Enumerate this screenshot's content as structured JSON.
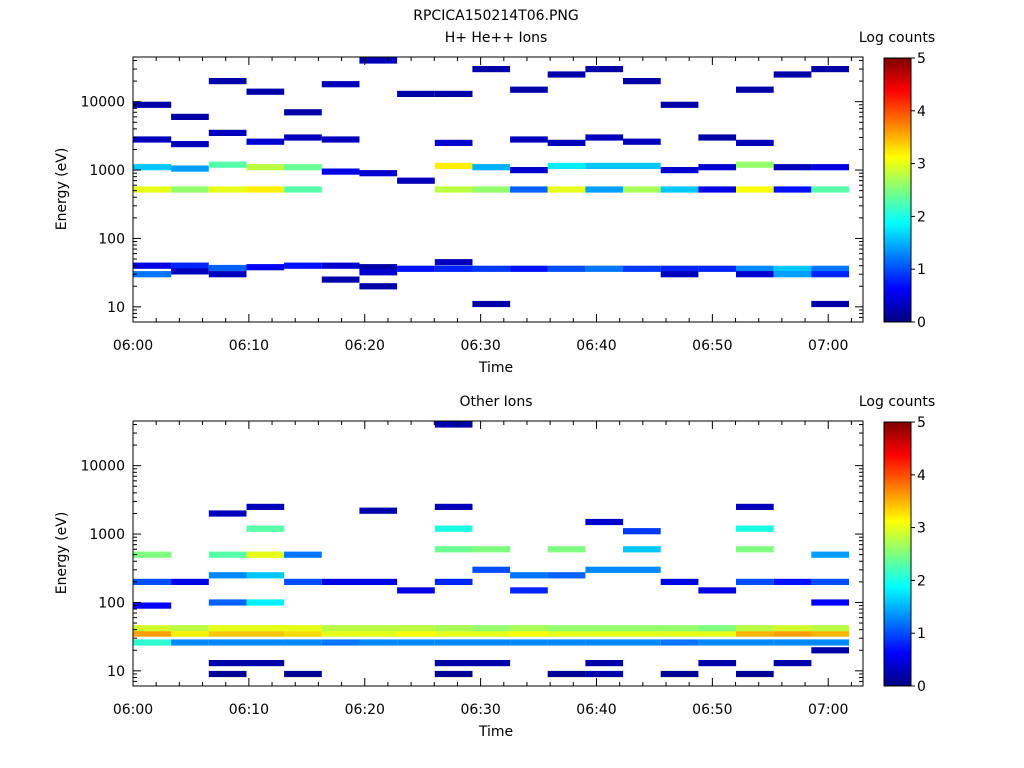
{
  "figure": {
    "title": "RPCICA150214T06.PNG"
  },
  "colormap_stops": [
    "#00007f",
    "#0000ff",
    "#007fff",
    "#00ffff",
    "#7fff7f",
    "#ffff00",
    "#ff7f00",
    "#ff0000",
    "#7f0000"
  ],
  "chart_data": [
    {
      "type": "heatmap",
      "title": "H+ He++ Ions",
      "xlabel": "Time",
      "ylabel": "Energy (eV)",
      "x_range": [
        "06:00",
        "07:03"
      ],
      "x_ticks": [
        "06:00",
        "06:10",
        "06:20",
        "06:30",
        "06:40",
        "06:50",
        "07:00"
      ],
      "y_scale": "log",
      "y_range": [
        6,
        45000
      ],
      "y_ticks": [
        "10",
        "100",
        "1000",
        "10000"
      ],
      "colorbar": {
        "label": "Log counts",
        "range": [
          0,
          5
        ],
        "ticks": [
          "0",
          "1",
          "2",
          "3",
          "4",
          "5"
        ]
      },
      "time_bins": [
        "06:01:40",
        "06:04:55",
        "06:08:10",
        "06:11:25",
        "06:14:40",
        "06:17:55",
        "06:21:10",
        "06:24:25",
        "06:27:40",
        "06:30:55",
        "06:34:10",
        "06:37:25",
        "06:40:40",
        "06:43:55",
        "06:47:10",
        "06:50:25",
        "06:53:40",
        "06:56:55",
        "07:00:10"
      ],
      "cells": [
        [
          "06:01:40",
          520,
          3.0
        ],
        [
          "06:01:40",
          1100,
          1.6
        ],
        [
          "06:01:40",
          2800,
          0.3
        ],
        [
          "06:01:40",
          9000,
          0.2
        ],
        [
          "06:01:40",
          40,
          0.5
        ],
        [
          "06:01:40",
          30,
          1.2
        ],
        [
          "06:04:55",
          520,
          2.6
        ],
        [
          "06:04:55",
          1050,
          1.4
        ],
        [
          "06:04:55",
          2400,
          0.3
        ],
        [
          "06:04:55",
          40,
          0.8
        ],
        [
          "06:04:55",
          33,
          0.3
        ],
        [
          "06:04:55",
          6000,
          0.2
        ],
        [
          "06:08:10",
          520,
          3.0
        ],
        [
          "06:08:10",
          1200,
          2.3
        ],
        [
          "06:08:10",
          3500,
          0.3
        ],
        [
          "06:08:10",
          37,
          1.1
        ],
        [
          "06:08:10",
          30,
          0.3
        ],
        [
          "06:08:10",
          20000,
          0.2
        ],
        [
          "06:11:25",
          520,
          3.2
        ],
        [
          "06:11:25",
          1100,
          2.8
        ],
        [
          "06:11:25",
          2600,
          0.4
        ],
        [
          "06:11:25",
          38,
          0.6
        ],
        [
          "06:11:25",
          14000,
          0.2
        ],
        [
          "06:14:40",
          520,
          2.3
        ],
        [
          "06:14:40",
          1100,
          2.4
        ],
        [
          "06:14:40",
          3000,
          0.3
        ],
        [
          "06:14:40",
          40,
          0.7
        ],
        [
          "06:14:40",
          7000,
          0.2
        ],
        [
          "06:17:55",
          950,
          0.5
        ],
        [
          "06:17:55",
          2800,
          0.3
        ],
        [
          "06:17:55",
          40,
          0.4
        ],
        [
          "06:17:55",
          25,
          0.2
        ],
        [
          "06:17:55",
          18000,
          0.3
        ],
        [
          "06:21:10",
          900,
          0.4
        ],
        [
          "06:21:10",
          38,
          0.2
        ],
        [
          "06:21:10",
          32,
          0.4
        ],
        [
          "06:21:10",
          20,
          0.2
        ],
        [
          "06:21:10",
          40000,
          0.3
        ],
        [
          "06:24:25",
          700,
          0.3
        ],
        [
          "06:24:25",
          36,
          0.7
        ],
        [
          "06:24:25",
          13000,
          0.2
        ],
        [
          "06:27:40",
          520,
          2.8
        ],
        [
          "06:27:40",
          1150,
          3.2
        ],
        [
          "06:27:40",
          2500,
          0.4
        ],
        [
          "06:27:40",
          36,
          0.8
        ],
        [
          "06:27:40",
          45,
          0.3
        ],
        [
          "06:27:40",
          13000,
          0.2
        ],
        [
          "06:30:55",
          520,
          2.6
        ],
        [
          "06:30:55",
          1100,
          1.5
        ],
        [
          "06:30:55",
          36,
          0.9
        ],
        [
          "06:30:55",
          11,
          0.2
        ],
        [
          "06:30:55",
          30000,
          0.2
        ],
        [
          "06:34:10",
          520,
          1.1
        ],
        [
          "06:34:10",
          1000,
          0.4
        ],
        [
          "06:34:10",
          2800,
          0.3
        ],
        [
          "06:34:10",
          36,
          0.7
        ],
        [
          "06:34:10",
          15000,
          0.2
        ],
        [
          "06:37:25",
          520,
          3.0
        ],
        [
          "06:37:25",
          1150,
          1.8
        ],
        [
          "06:37:25",
          2500,
          0.3
        ],
        [
          "06:37:25",
          36,
          1.0
        ],
        [
          "06:37:25",
          25000,
          0.2
        ],
        [
          "06:40:40",
          520,
          1.4
        ],
        [
          "06:40:40",
          1150,
          1.6
        ],
        [
          "06:40:40",
          3000,
          0.3
        ],
        [
          "06:40:40",
          36,
          1.2
        ],
        [
          "06:40:40",
          30000,
          0.2
        ],
        [
          "06:43:55",
          520,
          2.7
        ],
        [
          "06:43:55",
          1150,
          1.6
        ],
        [
          "06:43:55",
          2600,
          0.3
        ],
        [
          "06:43:55",
          36,
          0.9
        ],
        [
          "06:43:55",
          20000,
          0.2
        ],
        [
          "06:47:10",
          520,
          1.6
        ],
        [
          "06:47:10",
          1000,
          0.4
        ],
        [
          "06:47:10",
          36,
          0.8
        ],
        [
          "06:47:10",
          30,
          0.3
        ],
        [
          "06:47:10",
          9000,
          0.2
        ],
        [
          "06:50:25",
          520,
          0.5
        ],
        [
          "06:50:25",
          1100,
          0.4
        ],
        [
          "06:50:25",
          36,
          0.8
        ],
        [
          "06:50:25",
          3000,
          0.2
        ],
        [
          "06:53:40",
          520,
          3.1
        ],
        [
          "06:53:40",
          1200,
          2.6
        ],
        [
          "06:53:40",
          2500,
          0.3
        ],
        [
          "06:53:40",
          36,
          1.3
        ],
        [
          "06:53:40",
          30,
          0.4
        ],
        [
          "06:53:40",
          15000,
          0.2
        ],
        [
          "06:56:55",
          520,
          0.7
        ],
        [
          "06:56:55",
          1100,
          0.3
        ],
        [
          "06:56:55",
          36,
          1.6
        ],
        [
          "06:56:55",
          30,
          1.4
        ],
        [
          "06:56:55",
          25000,
          0.2
        ],
        [
          "07:00:10",
          520,
          2.3
        ],
        [
          "07:00:10",
          1100,
          0.5
        ],
        [
          "07:00:10",
          36,
          1.2
        ],
        [
          "07:00:10",
          30,
          0.8
        ],
        [
          "07:00:10",
          11,
          0.2
        ],
        [
          "07:00:10",
          30000,
          0.2
        ]
      ]
    },
    {
      "type": "heatmap",
      "title": "Other Ions",
      "xlabel": "Time",
      "ylabel": "Energy (eV)",
      "x_range": [
        "06:00",
        "07:03"
      ],
      "x_ticks": [
        "06:00",
        "06:10",
        "06:20",
        "06:30",
        "06:40",
        "06:50",
        "07:00"
      ],
      "y_scale": "log",
      "y_range": [
        6,
        45000
      ],
      "y_ticks": [
        "10",
        "100",
        "1000",
        "10000"
      ],
      "colorbar": {
        "label": "Log counts",
        "range": [
          0,
          5
        ],
        "ticks": [
          "0",
          "1",
          "2",
          "3",
          "4",
          "5"
        ]
      },
      "time_bins": [
        "06:01:40",
        "06:04:55",
        "06:08:10",
        "06:11:25",
        "06:14:40",
        "06:17:55",
        "06:21:10",
        "06:24:25",
        "06:27:40",
        "06:30:55",
        "06:34:10",
        "06:37:25",
        "06:40:40",
        "06:43:55",
        "06:47:10",
        "06:50:25",
        "06:53:40",
        "06:56:55",
        "07:00:10"
      ],
      "cells": [
        [
          "06:01:40",
          35,
          3.6
        ],
        [
          "06:01:40",
          42,
          2.9
        ],
        [
          "06:01:40",
          26,
          2.1
        ],
        [
          "06:01:40",
          500,
          2.5
        ],
        [
          "06:01:40",
          200,
          1.0
        ],
        [
          "06:01:40",
          90,
          0.6
        ],
        [
          "06:04:55",
          35,
          3.2
        ],
        [
          "06:04:55",
          42,
          2.8
        ],
        [
          "06:04:55",
          26,
          1.3
        ],
        [
          "06:04:55",
          200,
          0.5
        ],
        [
          "06:08:10",
          35,
          3.4
        ],
        [
          "06:08:10",
          42,
          3.0
        ],
        [
          "06:08:10",
          26,
          1.3
        ],
        [
          "06:08:10",
          500,
          2.3
        ],
        [
          "06:08:10",
          250,
          1.3
        ],
        [
          "06:08:10",
          100,
          1.1
        ],
        [
          "06:08:10",
          2000,
          0.3
        ],
        [
          "06:08:10",
          13,
          0.2
        ],
        [
          "06:08:10",
          9,
          0.1
        ],
        [
          "06:11:25",
          35,
          3.4
        ],
        [
          "06:11:25",
          42,
          3.0
        ],
        [
          "06:11:25",
          26,
          1.3
        ],
        [
          "06:11:25",
          500,
          3.0
        ],
        [
          "06:11:25",
          250,
          1.6
        ],
        [
          "06:11:25",
          100,
          1.8
        ],
        [
          "06:11:25",
          1200,
          2.3
        ],
        [
          "06:11:25",
          2500,
          0.3
        ],
        [
          "06:11:25",
          13,
          0.2
        ],
        [
          "06:14:40",
          35,
          3.3
        ],
        [
          "06:14:40",
          42,
          3.0
        ],
        [
          "06:14:40",
          26,
          1.3
        ],
        [
          "06:14:40",
          500,
          1.2
        ],
        [
          "06:14:40",
          200,
          1.0
        ],
        [
          "06:14:40",
          9,
          0.1
        ],
        [
          "06:17:55",
          35,
          3.0
        ],
        [
          "06:17:55",
          42,
          2.8
        ],
        [
          "06:17:55",
          26,
          1.2
        ],
        [
          "06:17:55",
          200,
          0.5
        ],
        [
          "06:21:10",
          35,
          3.0
        ],
        [
          "06:21:10",
          42,
          2.8
        ],
        [
          "06:21:10",
          26,
          1.3
        ],
        [
          "06:21:10",
          200,
          0.5
        ],
        [
          "06:21:10",
          2200,
          0.2
        ],
        [
          "06:24:25",
          35,
          3.1
        ],
        [
          "06:24:25",
          42,
          2.8
        ],
        [
          "06:24:25",
          26,
          1.3
        ],
        [
          "06:24:25",
          150,
          0.5
        ],
        [
          "06:27:40",
          35,
          3.0
        ],
        [
          "06:27:40",
          42,
          2.7
        ],
        [
          "06:27:40",
          26,
          1.3
        ],
        [
          "06:27:40",
          600,
          2.4
        ],
        [
          "06:27:40",
          1200,
          2.0
        ],
        [
          "06:27:40",
          200,
          0.8
        ],
        [
          "06:27:40",
          2500,
          0.3
        ],
        [
          "06:27:40",
          40000,
          0.2
        ],
        [
          "06:27:40",
          13,
          0.2
        ],
        [
          "06:27:40",
          9,
          0.1
        ],
        [
          "06:30:55",
          35,
          3.0
        ],
        [
          "06:30:55",
          42,
          2.6
        ],
        [
          "06:30:55",
          26,
          1.3
        ],
        [
          "06:30:55",
          600,
          2.5
        ],
        [
          "06:30:55",
          300,
          1.0
        ],
        [
          "06:30:55",
          13,
          0.2
        ],
        [
          "06:34:10",
          35,
          3.1
        ],
        [
          "06:34:10",
          42,
          2.7
        ],
        [
          "06:34:10",
          26,
          1.3
        ],
        [
          "06:34:10",
          250,
          1.2
        ],
        [
          "06:34:10",
          150,
          0.8
        ],
        [
          "06:37:25",
          35,
          3.0
        ],
        [
          "06:37:25",
          42,
          2.6
        ],
        [
          "06:37:25",
          26,
          1.3
        ],
        [
          "06:37:25",
          600,
          2.5
        ],
        [
          "06:37:25",
          250,
          1.1
        ],
        [
          "06:37:25",
          9,
          0.1
        ],
        [
          "06:40:40",
          35,
          3.0
        ],
        [
          "06:40:40",
          42,
          2.6
        ],
        [
          "06:40:40",
          26,
          1.3
        ],
        [
          "06:40:40",
          300,
          1.3
        ],
        [
          "06:40:40",
          1500,
          0.4
        ],
        [
          "06:40:40",
          13,
          0.2
        ],
        [
          "06:40:40",
          9,
          0.2
        ],
        [
          "06:43:55",
          35,
          3.0
        ],
        [
          "06:43:55",
          42,
          2.6
        ],
        [
          "06:43:55",
          26,
          1.3
        ],
        [
          "06:43:55",
          600,
          1.6
        ],
        [
          "06:43:55",
          300,
          1.3
        ],
        [
          "06:43:55",
          1100,
          0.9
        ],
        [
          "06:47:10",
          35,
          3.0
        ],
        [
          "06:47:10",
          42,
          2.6
        ],
        [
          "06:47:10",
          26,
          1.2
        ],
        [
          "06:47:10",
          200,
          0.5
        ],
        [
          "06:47:10",
          9,
          0.1
        ],
        [
          "06:50:25",
          35,
          3.0
        ],
        [
          "06:50:25",
          42,
          2.5
        ],
        [
          "06:50:25",
          26,
          1.3
        ],
        [
          "06:50:25",
          150,
          0.5
        ],
        [
          "06:50:25",
          13,
          0.2
        ],
        [
          "06:53:40",
          35,
          3.5
        ],
        [
          "06:53:40",
          42,
          2.8
        ],
        [
          "06:53:40",
          26,
          1.3
        ],
        [
          "06:53:40",
          600,
          2.5
        ],
        [
          "06:53:40",
          1200,
          2.0
        ],
        [
          "06:53:40",
          200,
          1.0
        ],
        [
          "06:53:40",
          2500,
          0.3
        ],
        [
          "06:53:40",
          9,
          0.1
        ],
        [
          "06:56:55",
          35,
          3.6
        ],
        [
          "06:56:55",
          42,
          2.9
        ],
        [
          "06:56:55",
          26,
          1.3
        ],
        [
          "06:56:55",
          200,
          0.7
        ],
        [
          "06:56:55",
          13,
          0.2
        ],
        [
          "07:00:10",
          35,
          3.5
        ],
        [
          "07:00:10",
          42,
          2.8
        ],
        [
          "07:00:10",
          26,
          1.3
        ],
        [
          "07:00:10",
          500,
          1.4
        ],
        [
          "07:00:10",
          200,
          1.0
        ],
        [
          "07:00:10",
          100,
          0.6
        ],
        [
          "07:00:10",
          20,
          0.2
        ]
      ]
    }
  ]
}
